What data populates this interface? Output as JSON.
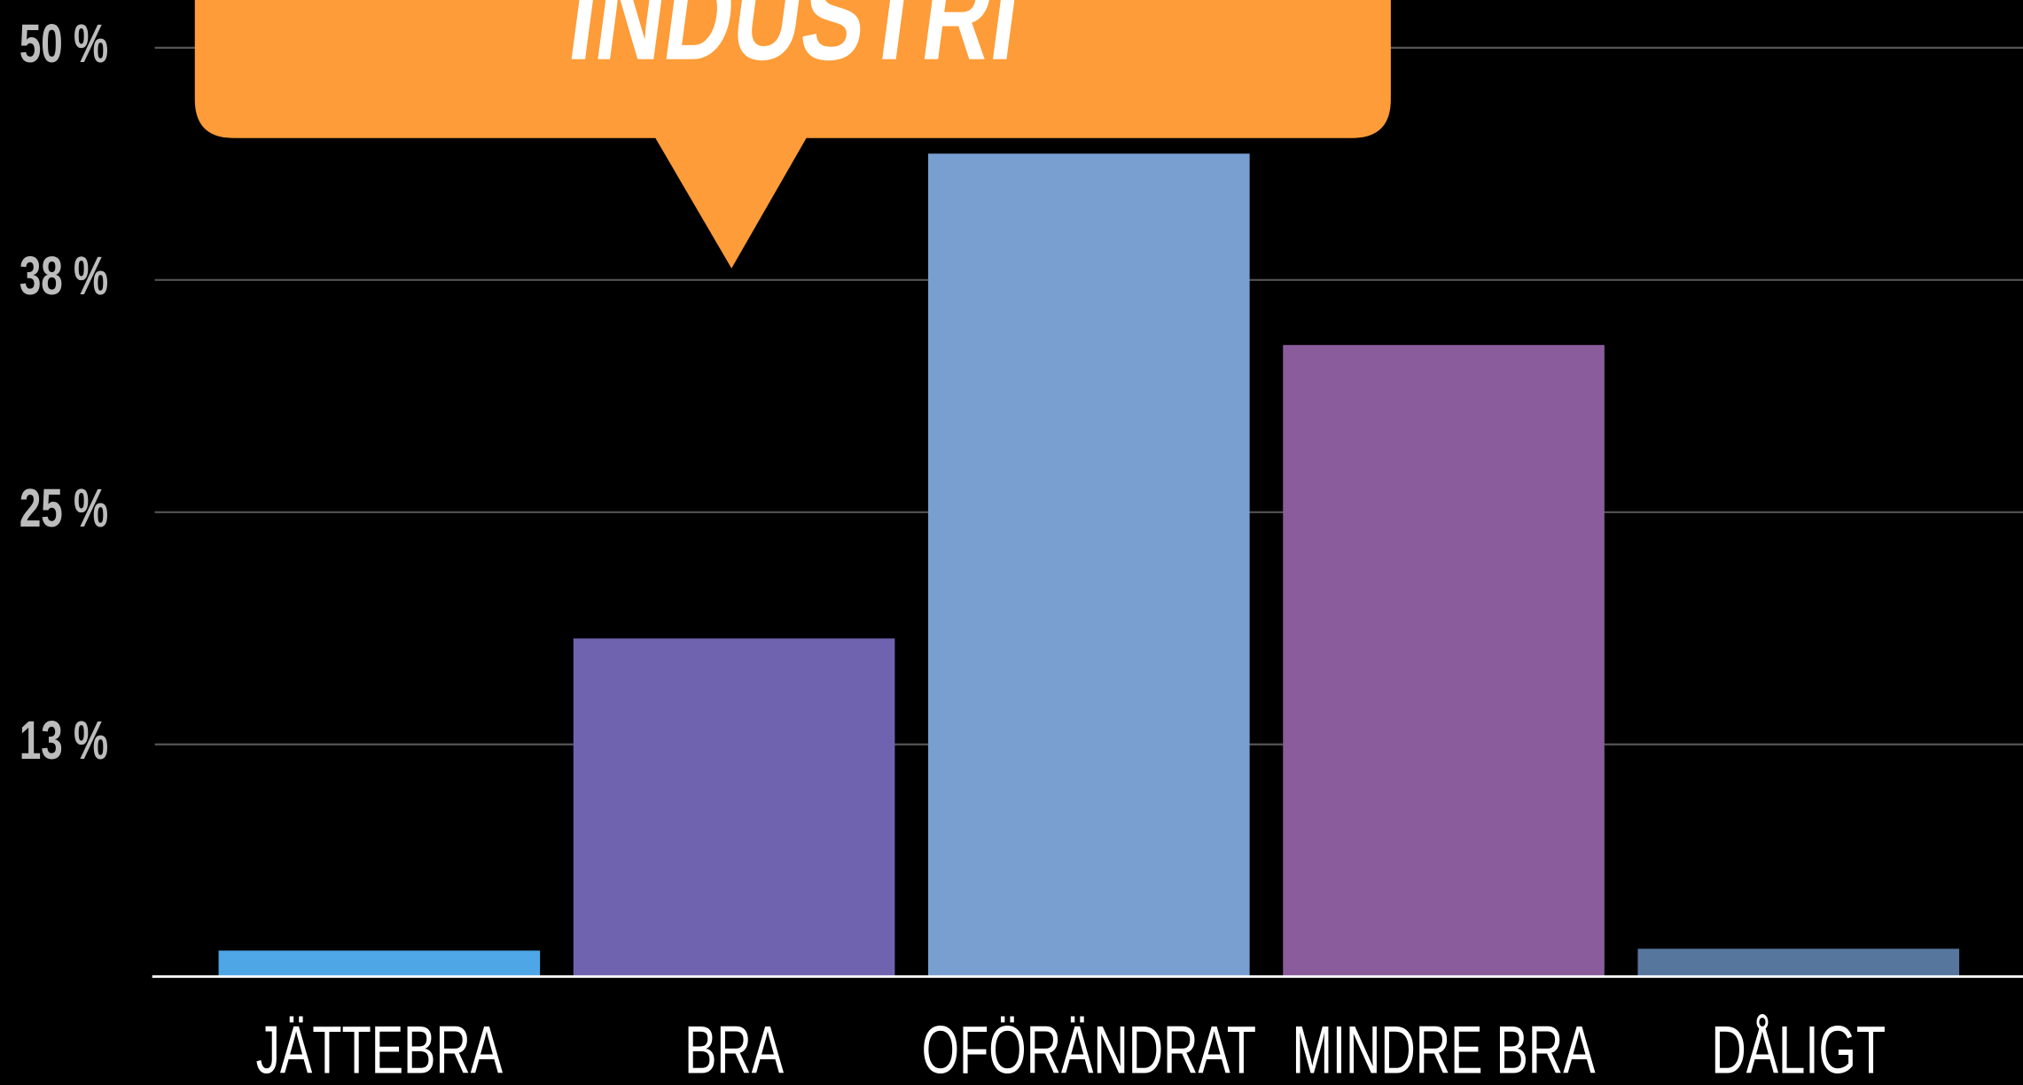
{
  "chart_data": {
    "type": "bar",
    "annotation": "INDUSTRI",
    "categories": [
      "JÄTTEBRA",
      "BRA",
      "OFÖRÄNDRAT",
      "MINDRE BRA",
      "DÅLIGT"
    ],
    "values": [
      1.4,
      18.2,
      44.3,
      34.0,
      1.5
    ],
    "colors": [
      "#4ea6e6",
      "#6f63b0",
      "#789fd0",
      "#8a5c9c",
      "#56769e"
    ],
    "ylim": [
      0,
      50
    ],
    "yticks": [
      {
        "value": 12.5,
        "label": "13 %"
      },
      {
        "value": 25,
        "label": "25 %"
      },
      {
        "value": 37.5,
        "label": "38 %"
      },
      {
        "value": 50,
        "label": "50 %"
      }
    ],
    "grid": true
  }
}
